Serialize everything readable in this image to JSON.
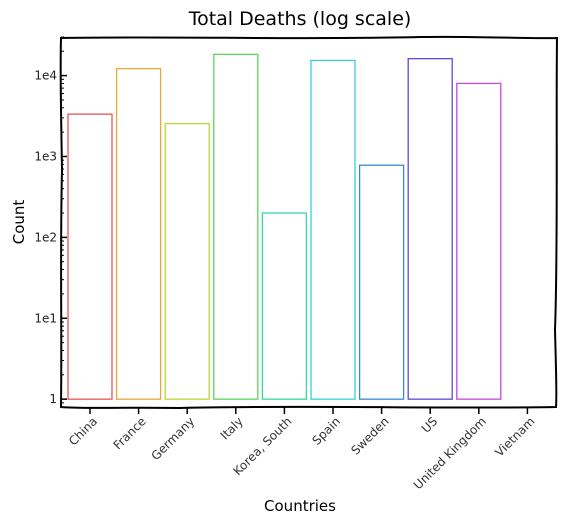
{
  "chart_data": {
    "type": "bar",
    "title": "Total Deaths (log scale)",
    "xlabel": "Countries",
    "ylabel": "Count",
    "yscale": "log",
    "ylim": [
      0.8,
      30000
    ],
    "ytick_values": [
      1,
      10,
      100,
      1000,
      10000
    ],
    "ytick_labels": [
      "1",
      "1e1",
      "1e2",
      "1e3",
      "1e4"
    ],
    "categories": [
      "China",
      "France",
      "Germany",
      "Italy",
      "Korea, South",
      "Spain",
      "Sweden",
      "US",
      "United Kingdom",
      "Vietnam"
    ],
    "values": [
      3340,
      12200,
      2550,
      18300,
      200,
      15400,
      780,
      16200,
      8000,
      0
    ],
    "colors": [
      "#e85555",
      "#e8a838",
      "#b8d838",
      "#58d858",
      "#38d89a",
      "#38d0d8",
      "#3888d8",
      "#6048d8",
      "#c848d8",
      "#d83888"
    ],
    "grid": false,
    "style": "xkcd"
  }
}
